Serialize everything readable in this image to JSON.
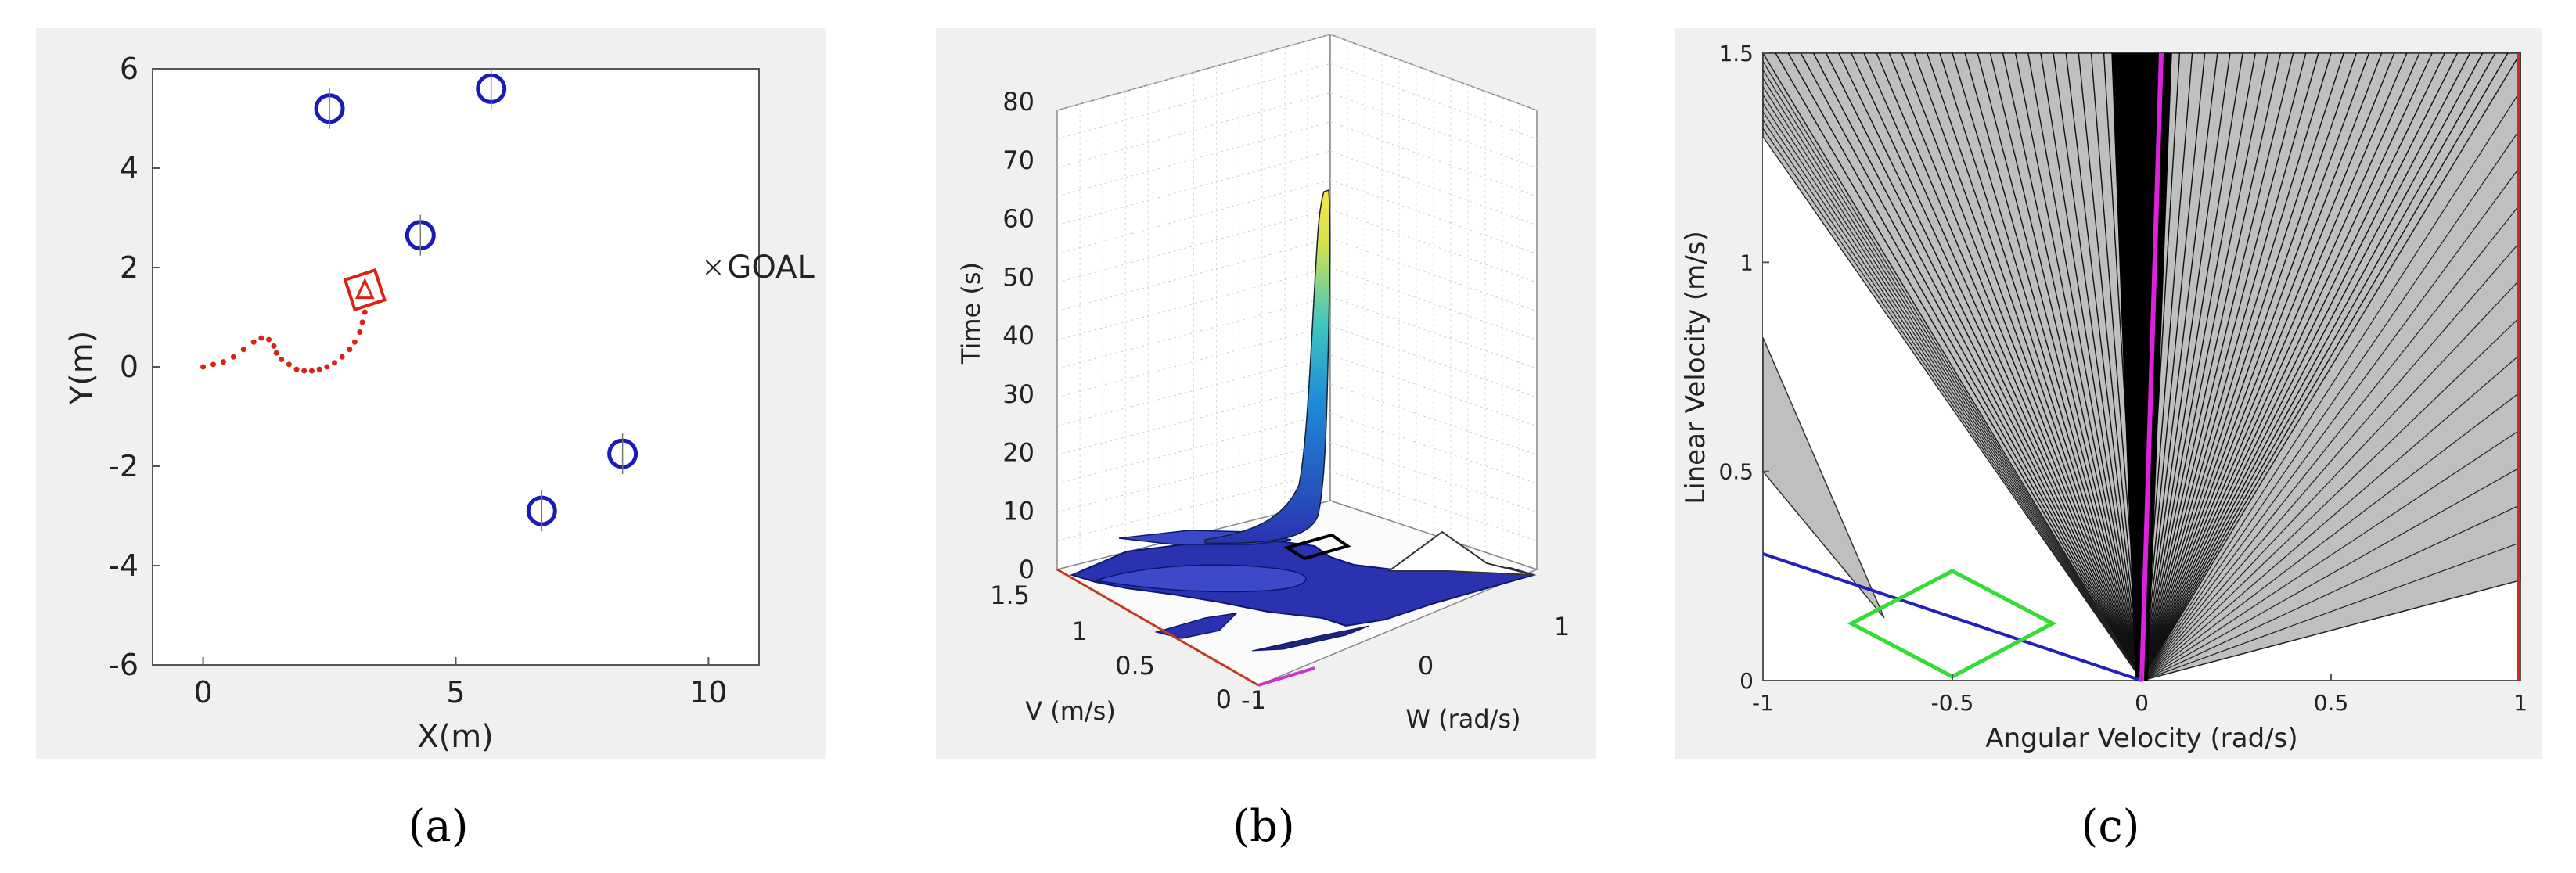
{
  "panels": {
    "a": {
      "caption": "(a)",
      "xlabel": "X(m)",
      "ylabel": "Y(m)",
      "xticks": [
        "0",
        "5",
        "10"
      ],
      "yticks": [
        "6",
        "4",
        "2",
        "0",
        "-2",
        "-4",
        "-6"
      ],
      "goal_label": "GOAL",
      "goal_point": [
        10,
        2
      ],
      "obstacles": [
        [
          2.5,
          5.2
        ],
        [
          5.7,
          5.6
        ],
        [
          4.3,
          2.65
        ],
        [
          8.3,
          -1.75
        ],
        [
          6.7,
          -2.9
        ]
      ],
      "robot_position": [
        3.2,
        1.55
      ],
      "trajectory_points": [
        [
          0.0,
          0.0
        ],
        [
          0.2,
          0.05
        ],
        [
          0.4,
          0.1
        ],
        [
          0.6,
          0.2
        ],
        [
          0.8,
          0.35
        ],
        [
          1.0,
          0.5
        ],
        [
          1.15,
          0.58
        ],
        [
          1.3,
          0.55
        ],
        [
          1.4,
          0.42
        ],
        [
          1.45,
          0.28
        ],
        [
          1.55,
          0.15
        ],
        [
          1.7,
          0.05
        ],
        [
          1.85,
          -0.05
        ],
        [
          2.0,
          -0.08
        ],
        [
          2.15,
          -0.08
        ],
        [
          2.3,
          -0.05
        ],
        [
          2.45,
          0.0
        ],
        [
          2.6,
          0.08
        ],
        [
          2.75,
          0.2
        ],
        [
          2.9,
          0.35
        ],
        [
          3.0,
          0.5
        ],
        [
          3.1,
          0.7
        ],
        [
          3.15,
          0.9
        ],
        [
          3.2,
          1.1
        ]
      ],
      "colors": {
        "obstacle": "#1a1ab8",
        "trajectory": "#dd2211",
        "robot": "#dd2211"
      }
    },
    "b": {
      "caption": "(b)",
      "zlabel": "Time (s)",
      "vlabel": "V (m/s)",
      "wlabel": "W (rad/s)",
      "zticks": [
        "80",
        "70",
        "60",
        "50",
        "40",
        "30",
        "20",
        "10",
        "0"
      ],
      "vticks": [
        "1.5",
        "1",
        "0.5",
        "0"
      ],
      "wticks": [
        "-1",
        "0",
        "1"
      ],
      "colors": {
        "surface": "#2a32b0",
        "spike_top": "#f0e04a",
        "spike_mid": "#22aadd"
      }
    },
    "c": {
      "caption": "(c)",
      "xlabel": "Angular Velocity (rad/s)",
      "ylabel": "Linear Velocity (m/s)",
      "xticks": [
        "-1",
        "-0.5",
        "0",
        "0.5",
        "1"
      ],
      "yticks": [
        "1.5",
        "1",
        "0.5",
        "0"
      ],
      "colors": {
        "cone": "#bfbfbf",
        "limit": "#2222bb",
        "window": "#33dd33",
        "center": "#dd22dd",
        "bound": "#dd2222"
      }
    }
  },
  "chart_data": [
    {
      "type": "scatter",
      "title": "",
      "xlabel": "X(m)",
      "ylabel": "Y(m)",
      "xlim": [
        -1,
        11
      ],
      "ylim": [
        -6,
        6
      ],
      "series": [
        {
          "name": "obstacles",
          "x": [
            2.5,
            5.7,
            4.3,
            8.3,
            6.7
          ],
          "y": [
            5.2,
            5.6,
            2.65,
            -1.75,
            -2.9
          ]
        },
        {
          "name": "goal",
          "x": [
            10
          ],
          "y": [
            2
          ]
        },
        {
          "name": "robot",
          "x": [
            3.2
          ],
          "y": [
            1.55
          ]
        }
      ]
    },
    {
      "type": "surface",
      "title": "",
      "xlabel": "W (rad/s)",
      "ylabel": "V (m/s)",
      "zlabel": "Time (s)",
      "xlim": [
        -1,
        1
      ],
      "ylim": [
        0,
        1.5
      ],
      "zlim": [
        0,
        80
      ]
    },
    {
      "type": "area",
      "title": "",
      "xlabel": "Angular Velocity (rad/s)",
      "ylabel": "Linear Velocity (m/s)",
      "xlim": [
        -1,
        1
      ],
      "ylim": [
        0,
        1.5
      ]
    }
  ]
}
